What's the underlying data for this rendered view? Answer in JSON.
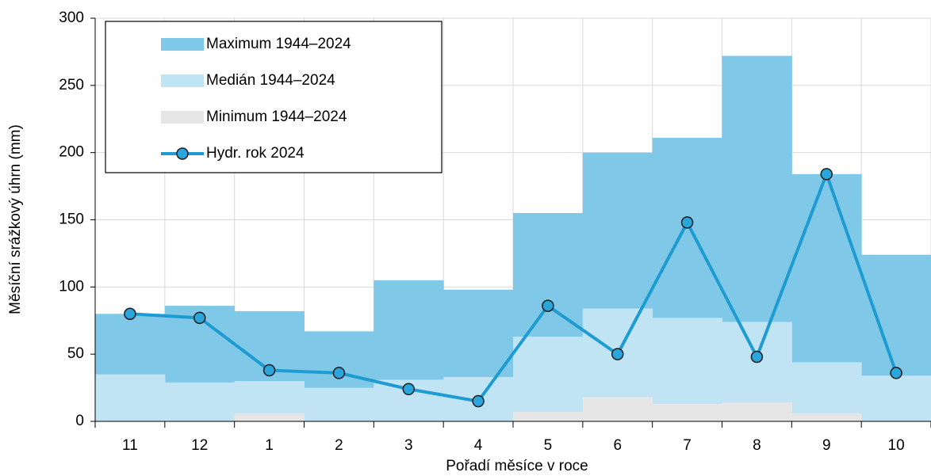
{
  "chart_data": {
    "type": "bar",
    "x_label": "Pořadí měsíce v roce",
    "y_label": "Měsíční srážkový úhrn (mm)",
    "categories": [
      "11",
      "12",
      "1",
      "2",
      "3",
      "4",
      "5",
      "6",
      "7",
      "8",
      "9",
      "10"
    ],
    "series": [
      {
        "name": "Maximum 1944–2024",
        "color": "#80c8e8",
        "type": "bar",
        "values": [
          80,
          86,
          82,
          67,
          105,
          98,
          155,
          200,
          211,
          272,
          184,
          124
        ]
      },
      {
        "name": "Medián 1944–2024",
        "color": "#c1e4f5",
        "type": "bar",
        "values": [
          35,
          29,
          30,
          25,
          31,
          33,
          63,
          84,
          77,
          74,
          44,
          34
        ]
      },
      {
        "name": "Minimum 1944–2024",
        "color": "#e6e6e6",
        "type": "bar",
        "values": [
          0,
          0,
          6,
          0,
          0,
          0,
          7,
          18,
          13,
          14,
          6,
          0
        ]
      },
      {
        "name": "Hydr. rok 2024",
        "color": "#1e9cd2",
        "type": "line",
        "values": [
          80,
          77,
          38,
          36,
          24,
          15,
          86,
          50,
          148,
          48,
          184,
          36
        ]
      }
    ],
    "ylim": [
      0,
      300
    ],
    "yticks": [
      0,
      50,
      100,
      150,
      200,
      250,
      300
    ],
    "grid": true,
    "legend": "upper left"
  }
}
